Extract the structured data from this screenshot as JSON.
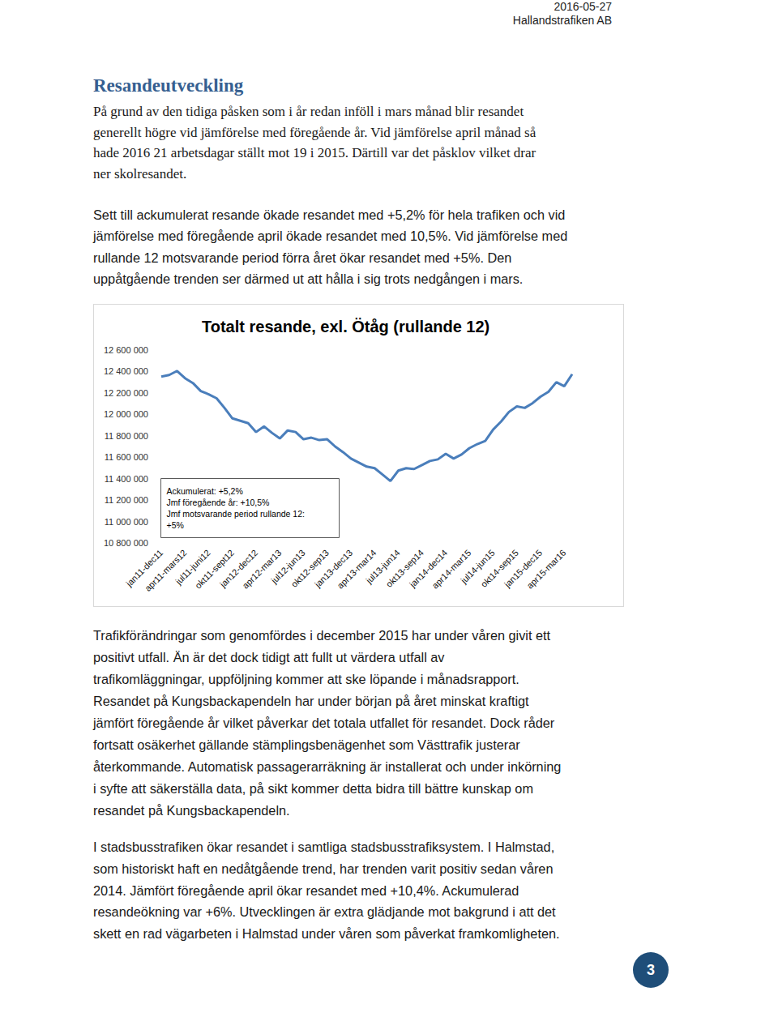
{
  "header": {
    "date": "2016-05-27",
    "company": "Hallandstrafiken AB"
  },
  "heading": "Resandeutveckling",
  "paragraphs_before": [
    [
      "På grund av den tidiga påsken som i år redan inföll i mars månad blir resandet",
      "generellt högre vid jämförelse med föregående år. Vid jämförelse april månad så",
      "hade 2016 21 arbetsdagar ställt mot 19 i 2015. Därtill var det påsklov vilket drar",
      "ner skolresandet."
    ],
    [
      "Sett till ackumulerat resande ökade resandet med +5,2% för hela trafiken och vid",
      "jämförelse med föregående april ökade resandet med 10,5%. Vid jämförelse med",
      "rullande 12 motsvarande period förra året ökar resandet med +5%. Den",
      "uppåtgående trenden ser därmed ut att hålla i sig trots nedgången i mars."
    ]
  ],
  "chart_data": {
    "type": "line",
    "title": "Totalt resande, exl. Ötåg (rullande 12)",
    "categories": [
      "jan11-dec11",
      null,
      null,
      "apr11-mars12",
      null,
      null,
      "jul11-juni12",
      null,
      null,
      "okt11-sept12",
      null,
      null,
      "jan12-dec12",
      null,
      null,
      "apr12-mar13",
      null,
      null,
      "jul12-jun13",
      null,
      null,
      "okt12-sep13",
      null,
      null,
      "jan13-dec13",
      null,
      null,
      "apr13-mar14",
      null,
      null,
      "jul13-jun14",
      null,
      null,
      "okt13-sep14",
      null,
      null,
      "jan14-dec14",
      null,
      null,
      "apr14-mar15",
      null,
      null,
      "jul14-jun15",
      null,
      null,
      "okt14-sep15",
      null,
      null,
      "jan15-dec15",
      null,
      null,
      "apr15-mar16",
      null
    ],
    "values": [
      12352500,
      12367500,
      12405000,
      12337500,
      12292500,
      12217500,
      12187500,
      12150000,
      12060000,
      11962500,
      11940000,
      11917500,
      11835000,
      11887500,
      11827500,
      11775000,
      11850000,
      11835000,
      11767500,
      11782500,
      11760000,
      11767500,
      11700000,
      11647500,
      11587500,
      11550000,
      11512500,
      11497500,
      11437500,
      11377500,
      11475000,
      11497500,
      11490000,
      11527500,
      11565000,
      11580000,
      11632500,
      11587500,
      11625000,
      11685000,
      11722500,
      11752500,
      11857500,
      11932500,
      12022500,
      12075000,
      12060000,
      12105000,
      12165000,
      12210000,
      12300000,
      12262500,
      12375000
    ],
    "color": "#4a7ebb",
    "ylim": [
      10800000,
      12600000
    ],
    "yticks": [
      {
        "value": 10800000,
        "label": "10 800 000"
      },
      {
        "value": 11000000,
        "label": "11 000 000"
      },
      {
        "value": 11200000,
        "label": "11 200 000"
      },
      {
        "value": 11400000,
        "label": "11 400 000"
      },
      {
        "value": 11600000,
        "label": "11 600 000"
      },
      {
        "value": 11800000,
        "label": "11 800 000"
      },
      {
        "value": 12000000,
        "label": "12 000 000"
      },
      {
        "value": 12200000,
        "label": "12 200 000"
      },
      {
        "value": 12400000,
        "label": "12 400 000"
      },
      {
        "value": 12600000,
        "label": "12 600 000"
      }
    ],
    "grid": false,
    "annotation": [
      "Ackumulerat: +5,2%",
      "Jmf föregående år: +10,5%",
      "Jmf motsvarande period rullande 12:",
      "+5%"
    ]
  },
  "paragraphs_after": [
    [
      "Trafikförändringar som genomfördes i december 2015 har under våren givit ett",
      "positivt utfall. Än är det dock tidigt att fullt ut värdera utfall av",
      "trafikomläggningar, uppföljning kommer att ske löpande i månadsrapport.",
      "Resandet på Kungsbackapendeln har under början på året minskat kraftigt",
      "jämfört föregående år vilket påverkar det totala utfallet för resandet. Dock råder",
      "fortsatt osäkerhet gällande stämplingsbenägenhet som Västtrafik justerar",
      "återkommande. Automatisk passagerarräkning är installerat och under inkörning",
      "i syfte att säkerställa data, på sikt kommer detta bidra till bättre kunskap om",
      "resandet på Kungsbackapendeln."
    ],
    [
      "I stadsbusstrafiken ökar resandet i samtliga stadsbusstrafiksystem. I Halmstad,",
      "som historiskt haft en nedåtgående trend, har trenden varit positiv sedan våren",
      "2014. Jämfört föregående april ökar resandet med +10,4%. Ackumulerad",
      "resandeökning var +6%. Utvecklingen är extra glädjande mot bakgrund i att det",
      "skett en rad vägarbeten i Halmstad under våren som påverkat framkomligheten."
    ]
  ],
  "page_number": "3"
}
